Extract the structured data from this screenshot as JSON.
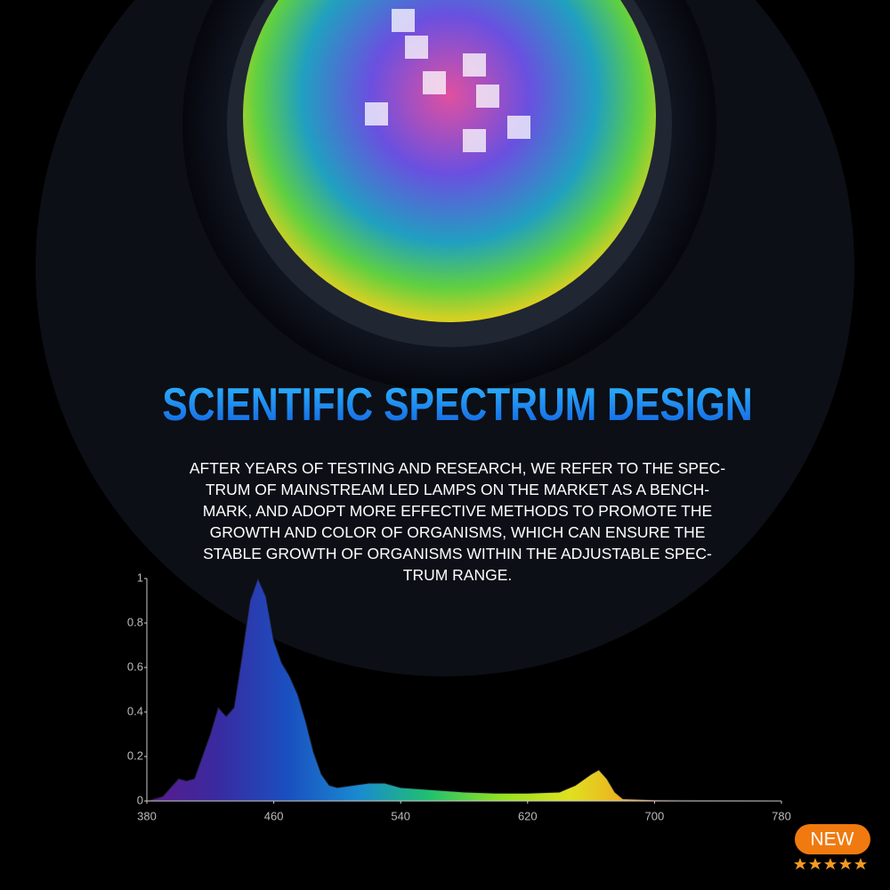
{
  "heading": "SCIENTIFIC SPECTRUM DESIGN",
  "body": [
    "AFTER YEARS OF TESTING AND RESEARCH, WE REFER TO THE SPEC-",
    "TRUM OF MAINSTREAM LED LAMPS ON THE MARKET AS A BENCH-",
    "MARK, AND ADOPT MORE EFFECTIVE METHODS TO PROMOTE THE",
    "GROWTH AND COLOR OF ORGANISMS, WHICH CAN ENSURE THE",
    "STABLE GROWTH OF ORGANISMS WITHIN THE ADJUSTABLE SPEC-",
    "TRUM RANGE."
  ],
  "badge": "NEW",
  "chart_data": {
    "type": "area",
    "x": [
      380,
      390,
      400,
      405,
      410,
      420,
      425,
      430,
      435,
      440,
      445,
      450,
      455,
      460,
      465,
      470,
      475,
      480,
      485,
      490,
      495,
      500,
      510,
      520,
      530,
      540,
      560,
      580,
      600,
      620,
      640,
      650,
      660,
      665,
      670,
      675,
      680,
      700,
      780
    ],
    "values": [
      0,
      0.02,
      0.1,
      0.09,
      0.1,
      0.3,
      0.42,
      0.38,
      0.42,
      0.65,
      0.9,
      1.0,
      0.92,
      0.72,
      0.62,
      0.56,
      0.48,
      0.36,
      0.22,
      0.12,
      0.07,
      0.06,
      0.07,
      0.08,
      0.08,
      0.06,
      0.05,
      0.04,
      0.035,
      0.035,
      0.04,
      0.07,
      0.12,
      0.14,
      0.1,
      0.04,
      0.01,
      0.005,
      0
    ],
    "gradient": [
      "#5a1a8a",
      "#3a2aa0",
      "#1a4fc0",
      "#1a8ad0",
      "#20c070",
      "#90e020",
      "#e0e020",
      "#f0a020",
      "#e03020",
      "#b01010"
    ],
    "xlim": [
      380,
      780
    ],
    "xticks": [
      380,
      460,
      540,
      620,
      700,
      780
    ],
    "ylim": [
      0,
      1
    ],
    "yticks": [
      0,
      0.2,
      0.4,
      0.6,
      0.8,
      1
    ]
  }
}
